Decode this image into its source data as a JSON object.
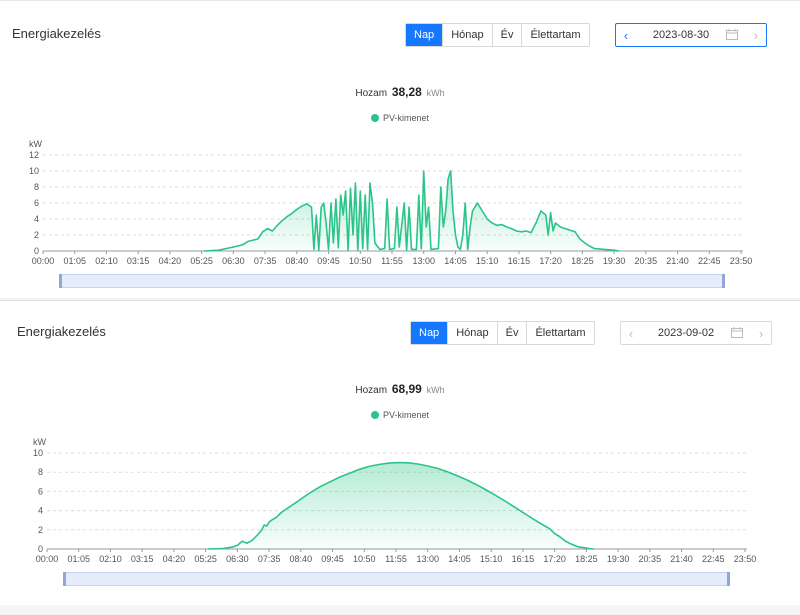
{
  "panels": [
    {
      "title": "Energiakezelés",
      "tabs": [
        {
          "label": "Nap",
          "active": true
        },
        {
          "label": "Hónap",
          "active": false
        },
        {
          "label": "Év",
          "active": false
        },
        {
          "label": "Élettartam",
          "active": false
        }
      ],
      "date": "2023-08-30",
      "summary": {
        "label": "Hozam",
        "value": "38,28",
        "unit": "kWh"
      },
      "legend": "PV-kimenet",
      "chart_data": {
        "type": "area",
        "ylabel": "kW",
        "ylim": [
          0,
          12
        ],
        "yticks": [
          "0",
          "2",
          "4",
          "6",
          "8",
          "10",
          "12"
        ],
        "xticks": [
          "00:00",
          "01:05",
          "02:10",
          "03:15",
          "04:20",
          "05:25",
          "06:30",
          "07:35",
          "08:40",
          "09:45",
          "10:50",
          "11:55",
          "13:00",
          "14:05",
          "15:10",
          "16:15",
          "17:20",
          "18:25",
          "19:30",
          "20:35",
          "21:40",
          "22:45",
          "23:50"
        ],
        "series": [
          {
            "name": "PV-kimenet",
            "color": "#2bc48a",
            "points": [
              [
                330,
                0
              ],
              [
                360,
                0.1
              ],
              [
                390,
                0.5
              ],
              [
                410,
                0.8
              ],
              [
                420,
                1.2
              ],
              [
                440,
                1.5
              ],
              [
                450,
                2.4
              ],
              [
                460,
                2.8
              ],
              [
                470,
                2.5
              ],
              [
                480,
                3.2
              ],
              [
                490,
                3.8
              ],
              [
                500,
                4.3
              ],
              [
                510,
                4.7
              ],
              [
                520,
                5.2
              ],
              [
                530,
                5.6
              ],
              [
                540,
                5.9
              ],
              [
                550,
                5.5
              ],
              [
                555,
                0.2
              ],
              [
                560,
                4.5
              ],
              [
                565,
                0.1
              ],
              [
                570,
                5.5
              ],
              [
                575,
                6
              ],
              [
                580,
                3.5
              ],
              [
                585,
                0.2
              ],
              [
                590,
                6
              ],
              [
                595,
                1
              ],
              [
                600,
                6.5
              ],
              [
                605,
                0.4
              ],
              [
                610,
                7
              ],
              [
                615,
                4.5
              ],
              [
                620,
                7.5
              ],
              [
                625,
                0.1
              ],
              [
                630,
                7.8
              ],
              [
                635,
                2
              ],
              [
                640,
                8.5
              ],
              [
                645,
                0.1
              ],
              [
                650,
                7.5
              ],
              [
                655,
                0.3
              ],
              [
                660,
                7
              ],
              [
                665,
                0.2
              ],
              [
                670,
                8.5
              ],
              [
                675,
                6
              ],
              [
                680,
                1
              ],
              [
                690,
                0.2
              ],
              [
                700,
                0.3
              ],
              [
                705,
                6.5
              ],
              [
                710,
                0.2
              ],
              [
                720,
                0.3
              ],
              [
                725,
                5.5
              ],
              [
                730,
                0.5
              ],
              [
                740,
                6
              ],
              [
                745,
                0.1
              ],
              [
                750,
                5.5
              ],
              [
                755,
                0.2
              ],
              [
                765,
                0.2
              ],
              [
                770,
                7
              ],
              [
                775,
                0.3
              ],
              [
                780,
                10
              ],
              [
                785,
                3
              ],
              [
                790,
                5.5
              ],
              [
                795,
                0.2
              ],
              [
                810,
                0.3
              ],
              [
                815,
                8
              ],
              [
                820,
                3
              ],
              [
                825,
                5
              ],
              [
                830,
                9
              ],
              [
                835,
                10
              ],
              [
                840,
                5
              ],
              [
                845,
                2
              ],
              [
                850,
                0.5
              ],
              [
                855,
                0.2
              ],
              [
                860,
                2
              ],
              [
                865,
                6
              ],
              [
                870,
                0.2
              ],
              [
                875,
                3
              ],
              [
                880,
                5
              ],
              [
                890,
                6
              ],
              [
                900,
                5
              ],
              [
                910,
                4
              ],
              [
                920,
                3.5
              ],
              [
                930,
                3.2
              ],
              [
                940,
                3.3
              ],
              [
                950,
                3
              ],
              [
                960,
                2.8
              ],
              [
                970,
                2.5
              ],
              [
                980,
                2.4
              ],
              [
                990,
                2.5
              ],
              [
                1000,
                2.3
              ],
              [
                1010,
                3.5
              ],
              [
                1020,
                5
              ],
              [
                1030,
                4.5
              ],
              [
                1035,
                2
              ],
              [
                1040,
                4.8
              ],
              [
                1045,
                2.5
              ],
              [
                1050,
                3.5
              ],
              [
                1060,
                3
              ],
              [
                1070,
                2.8
              ],
              [
                1080,
                2.6
              ],
              [
                1090,
                2.4
              ],
              [
                1100,
                1.5
              ],
              [
                1110,
                1
              ],
              [
                1120,
                0.6
              ],
              [
                1130,
                0.3
              ],
              [
                1150,
                0.2
              ],
              [
                1170,
                0.1
              ],
              [
                1180,
                0
              ]
            ]
          }
        ]
      }
    },
    {
      "title": "Energiakezelés",
      "tabs": [
        {
          "label": "Nap",
          "active": true
        },
        {
          "label": "Hónap",
          "active": false
        },
        {
          "label": "Év",
          "active": false
        },
        {
          "label": "Élettartam",
          "active": false
        }
      ],
      "date": "2023-09-02",
      "summary": {
        "label": "Hozam",
        "value": "68,99",
        "unit": "kWh"
      },
      "legend": "PV-kimenet",
      "chart_data": {
        "type": "area",
        "ylabel": "kW",
        "ylim": [
          0,
          10
        ],
        "yticks": [
          "0",
          "2",
          "4",
          "6",
          "8",
          "10"
        ],
        "xticks": [
          "00:00",
          "01:05",
          "02:10",
          "03:15",
          "04:20",
          "05:25",
          "06:30",
          "07:35",
          "08:40",
          "09:45",
          "10:50",
          "11:55",
          "13:00",
          "14:05",
          "15:10",
          "16:15",
          "17:20",
          "18:25",
          "19:30",
          "20:35",
          "21:40",
          "22:45",
          "23:50"
        ],
        "series": [
          {
            "name": "PV-kimenet",
            "color": "#2bc48a",
            "points": [
              [
                330,
                0
              ],
              [
                360,
                0.05
              ],
              [
                380,
                0.2
              ],
              [
                390,
                0.4
              ],
              [
                400,
                0.8
              ],
              [
                410,
                0.6
              ],
              [
                420,
                0.9
              ],
              [
                430,
                1.4
              ],
              [
                440,
                2
              ],
              [
                445,
                2.5
              ],
              [
                450,
                2.4
              ],
              [
                455,
                2.8
              ],
              [
                460,
                3
              ],
              [
                470,
                3.3
              ],
              [
                480,
                3.8
              ],
              [
                500,
                4.5
              ],
              [
                520,
                5.2
              ],
              [
                540,
                5.9
              ],
              [
                560,
                6.5
              ],
              [
                580,
                7
              ],
              [
                600,
                7.5
              ],
              [
                620,
                7.9
              ],
              [
                640,
                8.3
              ],
              [
                660,
                8.6
              ],
              [
                680,
                8.8
              ],
              [
                700,
                8.95
              ],
              [
                720,
                9
              ],
              [
                740,
                8.98
              ],
              [
                760,
                8.85
              ],
              [
                780,
                8.65
              ],
              [
                800,
                8.4
              ],
              [
                820,
                8.05
              ],
              [
                840,
                7.65
              ],
              [
                860,
                7.2
              ],
              [
                880,
                6.7
              ],
              [
                900,
                6.15
              ],
              [
                920,
                5.55
              ],
              [
                940,
                4.95
              ],
              [
                960,
                4.3
              ],
              [
                980,
                3.65
              ],
              [
                1000,
                3
              ],
              [
                1020,
                2.4
              ],
              [
                1030,
                2.1
              ],
              [
                1040,
                1.6
              ],
              [
                1050,
                1.3
              ],
              [
                1060,
                0.9
              ],
              [
                1070,
                0.6
              ],
              [
                1080,
                0.4
              ],
              [
                1090,
                0.2
              ],
              [
                1100,
                0.15
              ],
              [
                1110,
                0.05
              ],
              [
                1120,
                0
              ]
            ]
          }
        ]
      }
    }
  ]
}
